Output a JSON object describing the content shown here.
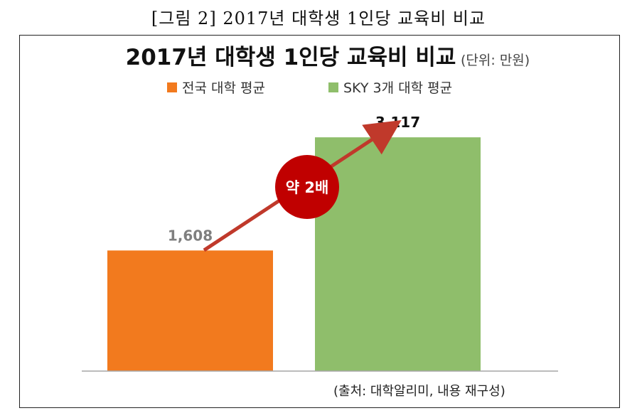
{
  "caption": "[그림 2] 2017년 대학생 1인당 교육비 비교",
  "chart_data": {
    "type": "bar",
    "title": "2017년 대학생 1인당 교육비 비교",
    "unit": "(단위: 만원)",
    "series": [
      {
        "name": "전국 대학 평균",
        "value": 1608,
        "label": "1,608",
        "color": "#f27a1e",
        "label_color": "#7f7f7f"
      },
      {
        "name": "SKY 3개 대학 평균",
        "value": 3117,
        "label": "3,117",
        "color": "#8fbe6b",
        "label_color": "#111111"
      }
    ],
    "ylim": [
      0,
      4000
    ],
    "grid": false,
    "legend_position": "top",
    "annotation": "약 2배",
    "annotation_color": "#c00000",
    "source": "(출처: 대학알리미, 내용 재구성)"
  }
}
